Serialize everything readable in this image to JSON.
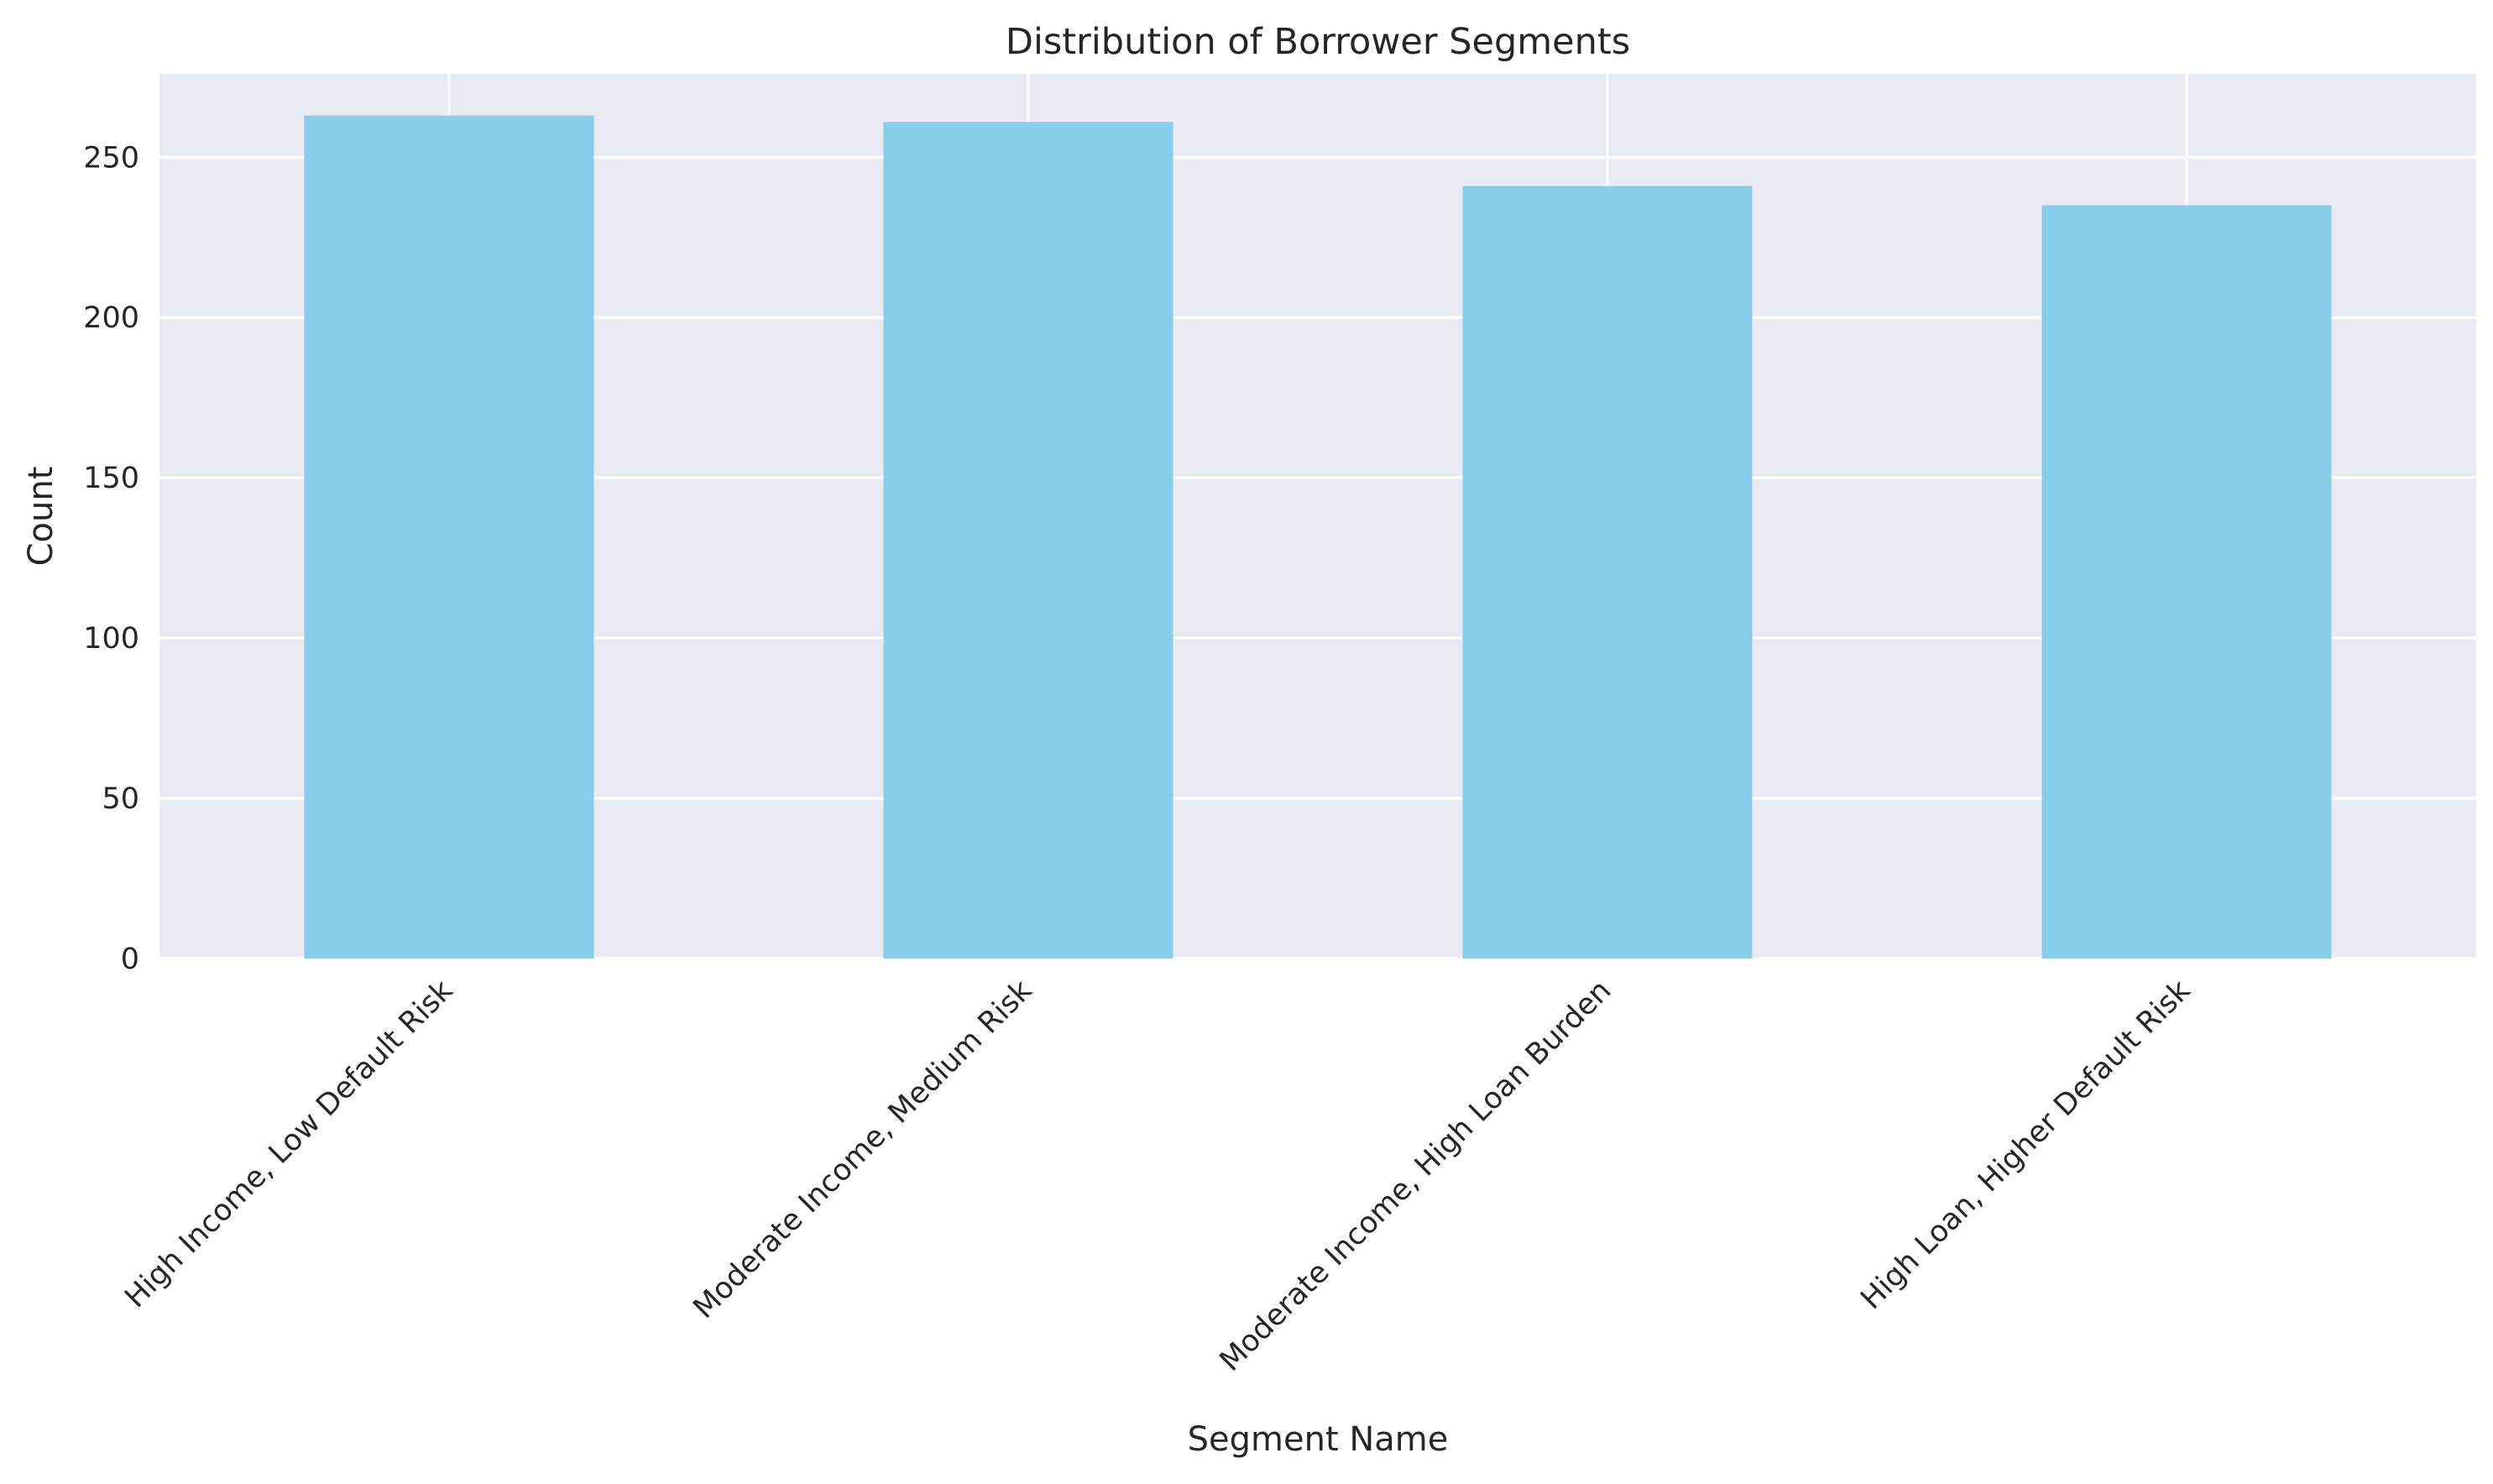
{
  "chart_data": {
    "type": "bar",
    "title": "Distribution of Borrower Segments",
    "xlabel": "Segment Name",
    "ylabel": "Count",
    "categories": [
      "High Income, Low Default Risk",
      "Moderate Income, Medium Risk",
      "Moderate Income, High Loan Burden",
      "High Loan, Higher Default Risk"
    ],
    "values": [
      263,
      261,
      241,
      235
    ],
    "ylim": [
      0,
      276
    ],
    "yticks": [
      0,
      50,
      100,
      150,
      200,
      250
    ],
    "grid": true,
    "legend": "none",
    "colors": {
      "bar": "#87CEEB",
      "plot_background": "#EAEAF2",
      "grid": "#FFFFFF",
      "text": "#262626"
    }
  }
}
